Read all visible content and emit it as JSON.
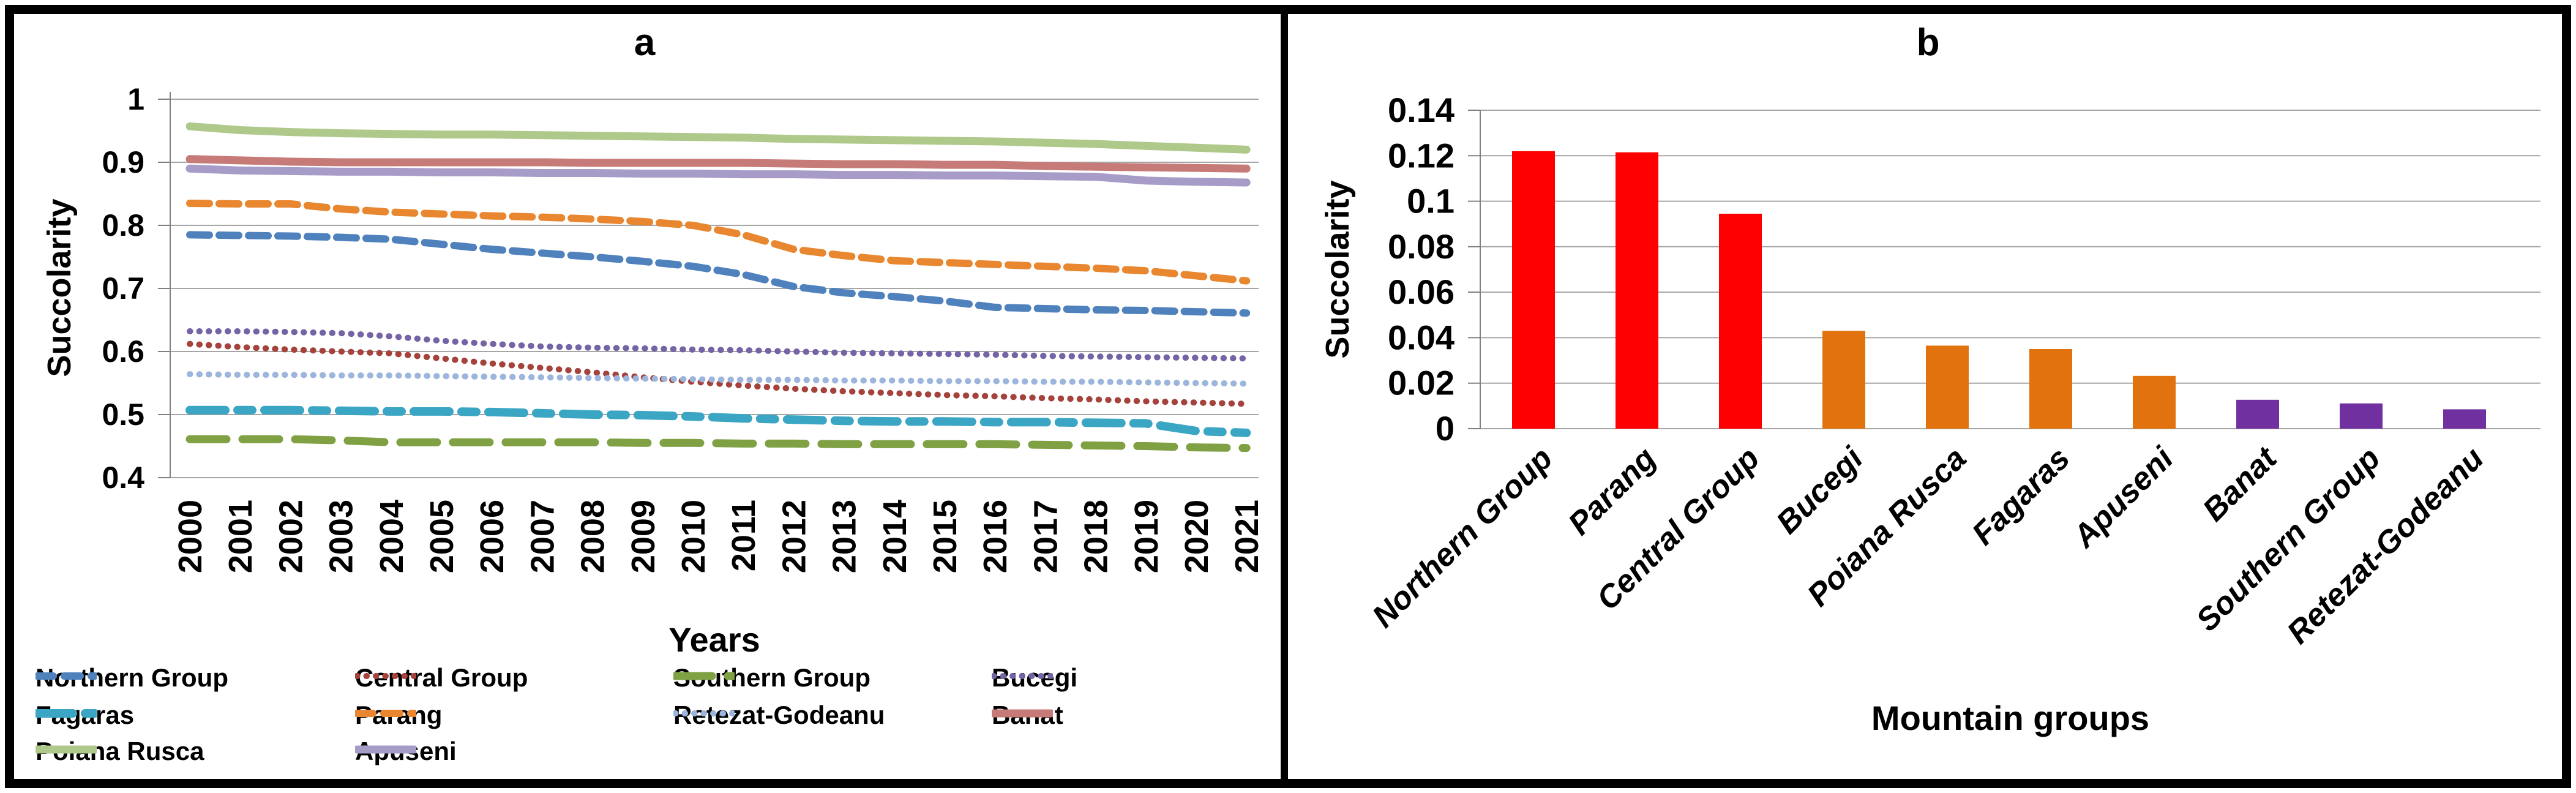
{
  "chart_data": [
    {
      "id": "panel_a",
      "type": "line",
      "title": "a",
      "xlabel": "Years",
      "ylabel": "Succolarity",
      "ylim": [
        0.4,
        1.0
      ],
      "yticks": [
        1,
        0.9,
        0.8,
        0.7,
        0.6,
        0.5,
        0.4
      ],
      "grid": true,
      "legend_position": "bottom",
      "x": [
        2000,
        2001,
        2002,
        2003,
        2004,
        2005,
        2006,
        2007,
        2008,
        2009,
        2010,
        2011,
        2012,
        2013,
        2014,
        2015,
        2016,
        2017,
        2018,
        2019,
        2020,
        2021
      ],
      "series": [
        {
          "name": "Northern Group",
          "color": "#4F81BD",
          "style": "dash",
          "values": [
            0.785,
            0.784,
            0.783,
            0.781,
            0.778,
            0.77,
            0.762,
            0.756,
            0.75,
            0.743,
            0.735,
            0.722,
            0.703,
            0.693,
            0.687,
            0.68,
            0.67,
            0.668,
            0.666,
            0.665,
            0.663,
            0.661
          ]
        },
        {
          "name": "Central Group",
          "color": "#A5423C",
          "style": "dot",
          "values": [
            0.612,
            0.607,
            0.603,
            0.6,
            0.597,
            0.589,
            0.581,
            0.574,
            0.567,
            0.559,
            0.552,
            0.546,
            0.541,
            0.537,
            0.534,
            0.531,
            0.529,
            0.526,
            0.524,
            0.521,
            0.519,
            0.517
          ]
        },
        {
          "name": "Southern Group",
          "color": "#7FA144",
          "style": "longdash",
          "values": [
            0.461,
            0.461,
            0.461,
            0.459,
            0.456,
            0.456,
            0.456,
            0.456,
            0.456,
            0.455,
            0.455,
            0.454,
            0.454,
            0.453,
            0.453,
            0.453,
            0.453,
            0.452,
            0.451,
            0.45,
            0.448,
            0.447
          ]
        },
        {
          "name": "Bucegi",
          "color": "#7463A5",
          "style": "dot",
          "values": [
            0.632,
            0.632,
            0.631,
            0.629,
            0.624,
            0.617,
            0.612,
            0.608,
            0.606,
            0.605,
            0.603,
            0.602,
            0.6,
            0.598,
            0.597,
            0.596,
            0.595,
            0.593,
            0.592,
            0.591,
            0.59,
            0.589
          ]
        },
        {
          "name": "Fagaras",
          "color": "#3BA6C4",
          "style": "longdash-short",
          "values": [
            0.507,
            0.507,
            0.507,
            0.506,
            0.505,
            0.505,
            0.504,
            0.502,
            0.5,
            0.499,
            0.497,
            0.494,
            0.492,
            0.49,
            0.489,
            0.489,
            0.488,
            0.488,
            0.487,
            0.486,
            0.474,
            0.471
          ]
        },
        {
          "name": "Parang",
          "color": "#E8872F",
          "style": "dash",
          "values": [
            0.835,
            0.834,
            0.834,
            0.826,
            0.821,
            0.818,
            0.815,
            0.813,
            0.81,
            0.806,
            0.8,
            0.785,
            0.762,
            0.752,
            0.744,
            0.741,
            0.738,
            0.735,
            0.732,
            0.728,
            0.72,
            0.712
          ]
        },
        {
          "name": "Retezat-Godeanu",
          "color": "#9CB5DC",
          "style": "dot",
          "values": [
            0.564,
            0.563,
            0.563,
            0.562,
            0.562,
            0.561,
            0.56,
            0.559,
            0.558,
            0.557,
            0.556,
            0.555,
            0.555,
            0.554,
            0.554,
            0.553,
            0.553,
            0.552,
            0.552,
            0.551,
            0.55,
            0.549
          ]
        },
        {
          "name": "Banat",
          "color": "#C67B79",
          "style": "solid",
          "values": [
            0.905,
            0.903,
            0.901,
            0.9,
            0.9,
            0.9,
            0.9,
            0.9,
            0.899,
            0.899,
            0.899,
            0.899,
            0.898,
            0.897,
            0.897,
            0.896,
            0.896,
            0.894,
            0.893,
            0.892,
            0.891,
            0.89
          ]
        },
        {
          "name": "Poiana Rusca",
          "color": "#AFC98B",
          "style": "solid",
          "values": [
            0.957,
            0.951,
            0.948,
            0.946,
            0.945,
            0.944,
            0.944,
            0.943,
            0.942,
            0.941,
            0.94,
            0.939,
            0.937,
            0.936,
            0.935,
            0.934,
            0.933,
            0.931,
            0.929,
            0.926,
            0.923,
            0.92
          ]
        },
        {
          "name": "Apuseni",
          "color": "#A79BC8",
          "style": "solid",
          "values": [
            0.89,
            0.887,
            0.886,
            0.885,
            0.885,
            0.884,
            0.884,
            0.883,
            0.883,
            0.882,
            0.882,
            0.881,
            0.881,
            0.88,
            0.88,
            0.879,
            0.879,
            0.878,
            0.877,
            0.871,
            0.869,
            0.868
          ]
        }
      ]
    },
    {
      "id": "panel_b",
      "type": "bar",
      "title": "b",
      "xlabel": "Mountain groups",
      "ylabel": "Succolarity",
      "ylim": [
        0,
        0.14
      ],
      "yticks": [
        0.14,
        0.12,
        0.1,
        0.08,
        0.06,
        0.04,
        0.02,
        0
      ],
      "grid": true,
      "categories": [
        "Northern Group",
        "Parang",
        "Central Group",
        "Bucegi",
        "Poiana Rusca",
        "Fagaras",
        "Apuseni",
        "Banat",
        "Southern Group",
        "Retezat-Godeanu"
      ],
      "values": [
        0.122,
        0.1215,
        0.0945,
        0.043,
        0.0365,
        0.035,
        0.0232,
        0.0127,
        0.0111,
        0.0085
      ],
      "bar_colors": [
        "#FF0000",
        "#FF0000",
        "#FF0000",
        "#E2720D",
        "#E2720D",
        "#E2720D",
        "#E2720D",
        "#7030A0",
        "#7030A0",
        "#7030A0"
      ]
    }
  ],
  "style_colors": {
    "gridline": "#A6A6A6",
    "axis": "#808080",
    "frame": "#000000"
  }
}
